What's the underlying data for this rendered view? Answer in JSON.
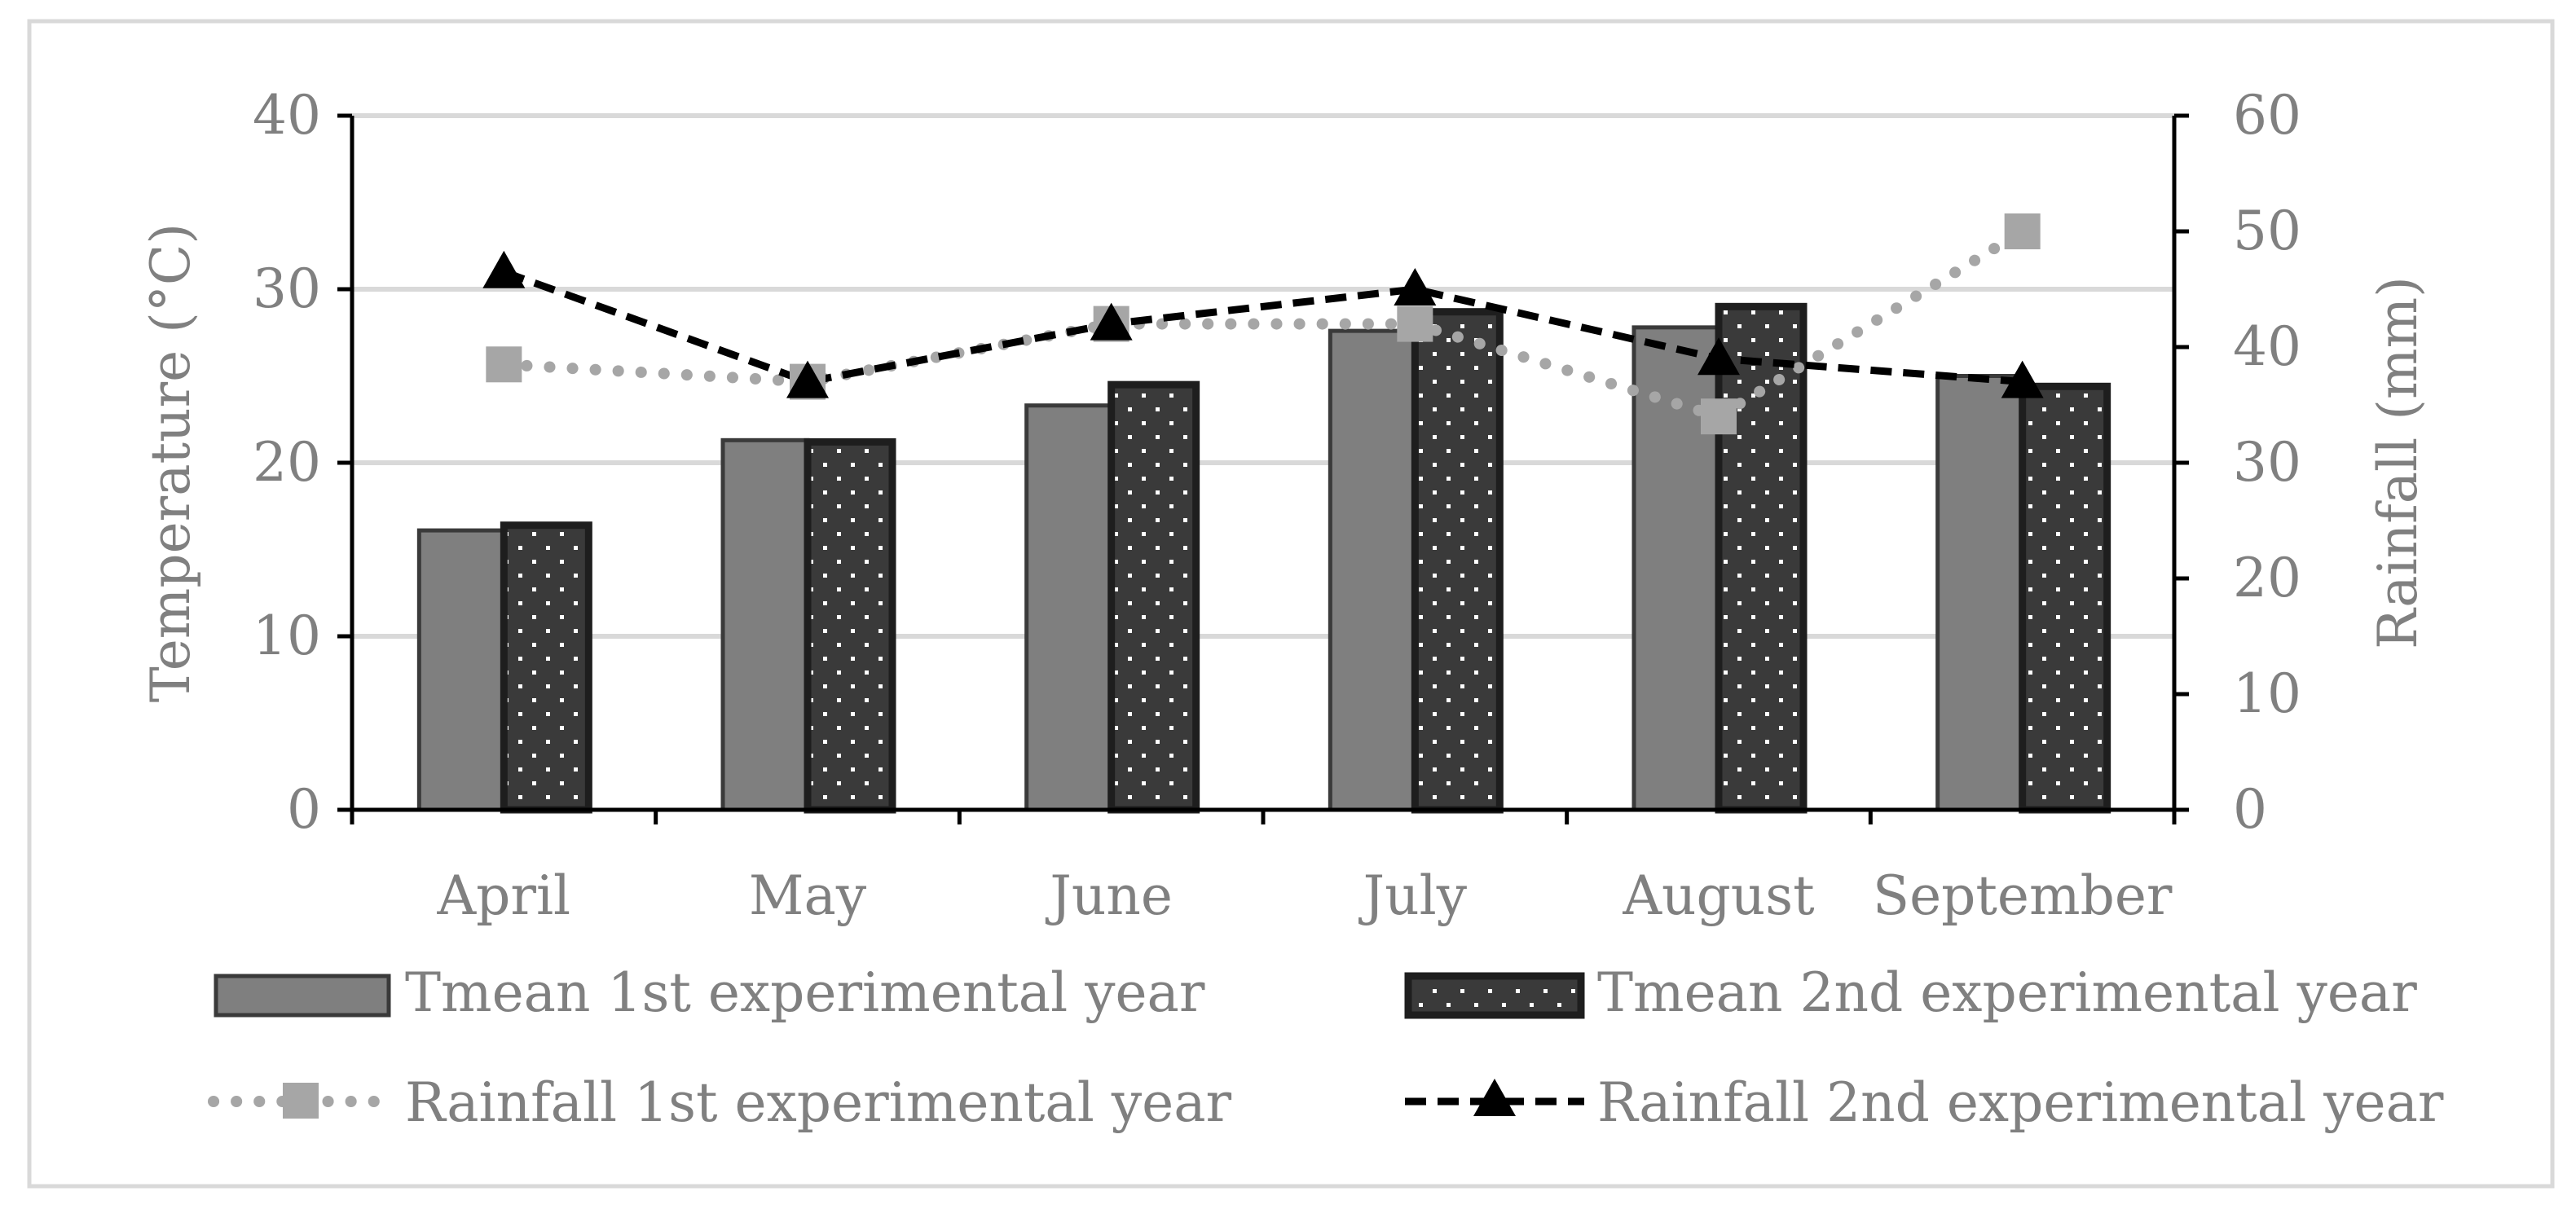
{
  "chart_data": {
    "type": "bar",
    "categories": [
      "April",
      "May",
      "June",
      "July",
      "August",
      "September"
    ],
    "y_left": {
      "label": "Temperature (°C)",
      "ylim": [
        0,
        40
      ],
      "ticks": [
        "0",
        "10",
        "20",
        "30",
        "40"
      ]
    },
    "y_right": {
      "label": "Rainfall (mm)",
      "ylim": [
        0,
        60
      ],
      "ticks": [
        "0",
        "10",
        "20",
        "30",
        "40",
        "50",
        "60"
      ]
    },
    "grid": true,
    "legend_position": "bottom",
    "series": [
      {
        "name": "Tmean 1st experimental year",
        "kind": "bar",
        "axis": "left",
        "color": "#7f7f7f",
        "values": [
          16.1,
          21.3,
          23.3,
          27.6,
          27.8,
          25.0
        ]
      },
      {
        "name": "Tmean 2nd experimental year",
        "kind": "bar",
        "axis": "left",
        "color": "#3a3a3a",
        "pattern": "dotted",
        "values": [
          16.4,
          21.2,
          24.5,
          28.7,
          29.0,
          24.4
        ]
      },
      {
        "name": "Rainfall 1st experimental year",
        "kind": "line",
        "axis": "right",
        "color": "#a6a6a6",
        "line_style": "dotted",
        "marker": "square",
        "values": [
          38.5,
          37.0,
          42.0,
          42.0,
          34.0,
          50.0
        ]
      },
      {
        "name": "Rainfall 2nd experimental year",
        "kind": "line",
        "axis": "right",
        "color": "#000000",
        "line_style": "dashed",
        "marker": "triangle",
        "values": [
          46.5,
          37.0,
          42.0,
          45.0,
          39.0,
          37.0
        ]
      }
    ]
  }
}
